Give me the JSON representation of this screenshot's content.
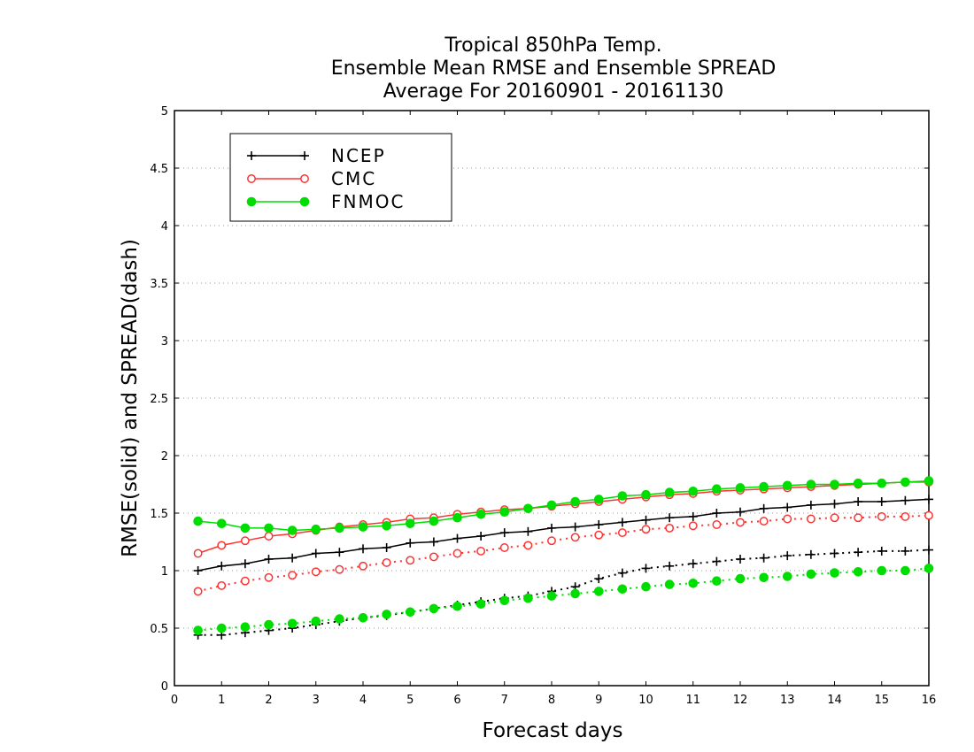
{
  "chart_data": {
    "type": "line",
    "title_lines": [
      "Tropical 850hPa Temp.",
      "Ensemble Mean RMSE and Ensemble SPREAD",
      "Average For 20160901 - 20161130"
    ],
    "xlabel": "Forecast days",
    "ylabel": "RMSE(solid) and SPREAD(dash)",
    "xlim": [
      0,
      16
    ],
    "ylim": [
      0,
      5
    ],
    "x_ticks": [
      "0",
      "1",
      "2",
      "3",
      "4",
      "5",
      "6",
      "7",
      "8",
      "9",
      "10",
      "11",
      "12",
      "13",
      "14",
      "15",
      "16"
    ],
    "y_ticks": [
      "0",
      "0.5",
      "1",
      "1.5",
      "2",
      "2.5",
      "3",
      "3.5",
      "4",
      "4.5",
      "5"
    ],
    "grid": "horizontal-dotted",
    "legend_position": "top-left",
    "x": [
      0.5,
      1,
      1.5,
      2,
      2.5,
      3,
      3.5,
      4,
      4.5,
      5,
      5.5,
      6,
      6.5,
      7,
      7.5,
      8,
      8.5,
      9,
      9.5,
      10,
      10.5,
      11,
      11.5,
      12,
      12.5,
      13,
      13.5,
      14,
      14.5,
      15,
      15.5,
      16
    ],
    "series": [
      {
        "name": "NCEP",
        "color": "#000000",
        "marker": "plus",
        "rmse": [
          1.0,
          1.04,
          1.06,
          1.1,
          1.11,
          1.15,
          1.16,
          1.19,
          1.2,
          1.24,
          1.25,
          1.28,
          1.3,
          1.33,
          1.34,
          1.37,
          1.38,
          1.4,
          1.42,
          1.44,
          1.46,
          1.47,
          1.5,
          1.51,
          1.54,
          1.55,
          1.57,
          1.58,
          1.6,
          1.6,
          1.61,
          1.62
        ],
        "spread": [
          0.44,
          0.44,
          0.46,
          0.48,
          0.5,
          0.53,
          0.56,
          0.59,
          0.61,
          0.64,
          0.67,
          0.7,
          0.73,
          0.76,
          0.78,
          0.82,
          0.86,
          0.93,
          0.98,
          1.02,
          1.04,
          1.06,
          1.08,
          1.1,
          1.11,
          1.13,
          1.14,
          1.15,
          1.16,
          1.17,
          1.17,
          1.18
        ]
      },
      {
        "name": "CMC",
        "color": "#ff3333",
        "marker": "open-circle",
        "rmse": [
          1.15,
          1.22,
          1.26,
          1.3,
          1.32,
          1.35,
          1.38,
          1.4,
          1.42,
          1.45,
          1.46,
          1.49,
          1.51,
          1.53,
          1.54,
          1.56,
          1.58,
          1.6,
          1.62,
          1.64,
          1.66,
          1.67,
          1.69,
          1.7,
          1.71,
          1.72,
          1.73,
          1.74,
          1.75,
          1.76,
          1.77,
          1.77
        ],
        "spread": [
          0.82,
          0.87,
          0.91,
          0.94,
          0.96,
          0.99,
          1.01,
          1.04,
          1.07,
          1.09,
          1.12,
          1.15,
          1.17,
          1.2,
          1.22,
          1.26,
          1.29,
          1.31,
          1.33,
          1.36,
          1.37,
          1.39,
          1.4,
          1.42,
          1.43,
          1.45,
          1.45,
          1.46,
          1.46,
          1.47,
          1.47,
          1.48
        ]
      },
      {
        "name": "FNMOC",
        "color": "#00dd00",
        "marker": "filled-circle",
        "rmse": [
          1.43,
          1.41,
          1.37,
          1.37,
          1.35,
          1.36,
          1.37,
          1.38,
          1.39,
          1.41,
          1.43,
          1.46,
          1.49,
          1.51,
          1.54,
          1.57,
          1.6,
          1.62,
          1.65,
          1.66,
          1.68,
          1.69,
          1.71,
          1.72,
          1.73,
          1.74,
          1.75,
          1.75,
          1.76,
          1.76,
          1.77,
          1.78
        ],
        "spread": [
          0.48,
          0.5,
          0.51,
          0.53,
          0.54,
          0.56,
          0.58,
          0.59,
          0.62,
          0.64,
          0.67,
          0.69,
          0.71,
          0.74,
          0.76,
          0.78,
          0.8,
          0.82,
          0.84,
          0.86,
          0.88,
          0.89,
          0.91,
          0.93,
          0.94,
          0.95,
          0.97,
          0.98,
          0.99,
          1.0,
          1.0,
          1.02
        ]
      }
    ]
  }
}
